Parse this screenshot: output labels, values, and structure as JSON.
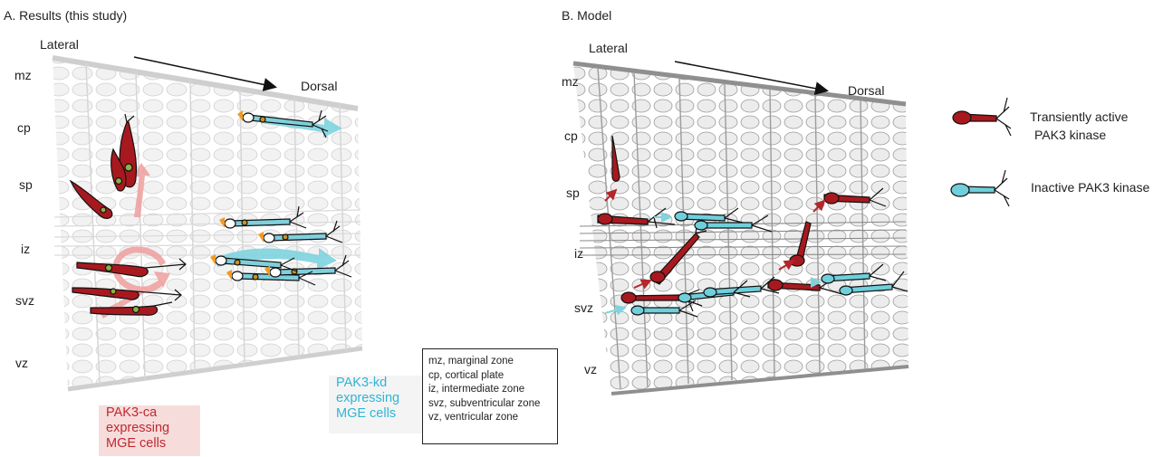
{
  "panel_a": {
    "title": "A. Results (this study)",
    "lateral": "Lateral",
    "dorsal": "Dorsal",
    "layers": [
      "mz",
      "cp",
      "sp",
      "iz",
      "svz",
      "vz"
    ],
    "red_label": [
      "PAK3-ca",
      "expressing",
      "MGE cells"
    ],
    "blue_label": [
      "PAK3-kd",
      "expressing",
      "MGE cells"
    ]
  },
  "panel_b": {
    "title": "B. Model",
    "lateral": "Lateral",
    "dorsal": "Dorsal",
    "layers": [
      "mz",
      "cp",
      "sp",
      "iz",
      "svz",
      "vz"
    ]
  },
  "abbreviations": [
    "mz, marginal zone",
    "cp, cortical plate",
    "iz, intermediate zone",
    "svz, subventricular zone",
    "vz, ventricular zone"
  ],
  "key": {
    "active": [
      "Transiently active",
      "PAK3 kinase"
    ],
    "inactive": "Inactive PAK3 kinase"
  },
  "colors": {
    "red_cell": "#a8191f",
    "blue_cell": "#6fcfdc",
    "pink_arrow": "#ef9e9e",
    "cyan_arrow": "#7ed3df",
    "tissue_a": "#d9d9d9",
    "tissue_b": "#9a9a9a"
  }
}
